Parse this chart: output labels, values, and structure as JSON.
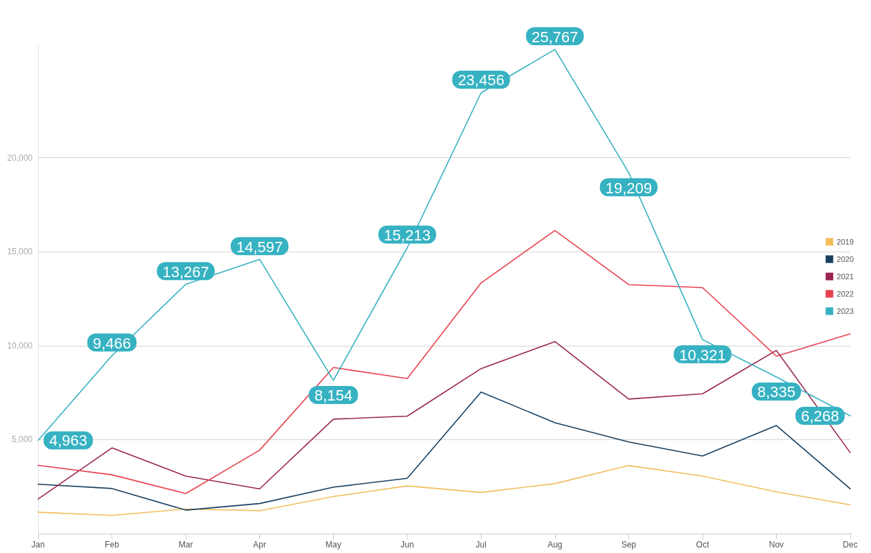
{
  "chart_data": {
    "type": "line",
    "categories": [
      "Jan",
      "Feb",
      "Mar",
      "Apr",
      "May",
      "Jun",
      "Jul",
      "Aug",
      "Sep",
      "Oct",
      "Nov",
      "Dec"
    ],
    "ylim": [
      0,
      26000
    ],
    "yticks": [
      {
        "value": 0,
        "label": null
      },
      {
        "value": 5000,
        "label": "5,000"
      },
      {
        "value": 10000,
        "label": "10,000"
      },
      {
        "value": 15000,
        "label": "15,000"
      },
      {
        "value": 20000,
        "label": "20,000"
      }
    ],
    "grid": "y",
    "legend": "right",
    "marker": "none",
    "line_style": "solid",
    "series": [
      {
        "name": "2019",
        "color": "#f2be5c",
        "values": [
          1140,
          970,
          1310,
          1220,
          1970,
          2540,
          2190,
          2660,
          3620,
          3060,
          2220,
          1530
        ]
      },
      {
        "name": "2020",
        "color": "#173f5f",
        "values": [
          2630,
          2400,
          1250,
          1600,
          2470,
          2940,
          7530,
          5900,
          4880,
          4130,
          5750,
          2380
        ]
      },
      {
        "name": "2021",
        "color": "#9b2550",
        "values": [
          1840,
          4560,
          3060,
          2380,
          6090,
          6250,
          8780,
          10220,
          7160,
          7440,
          9750,
          4310
        ]
      },
      {
        "name": "2022",
        "color": "#e8404f",
        "values": [
          3630,
          3130,
          2130,
          4440,
          8840,
          8250,
          13340,
          16130,
          13250,
          13090,
          9440,
          10630
        ]
      },
      {
        "name": "2023",
        "color": "#36b2c2",
        "values": [
          4963,
          9466,
          13267,
          14597,
          8154,
          15213,
          23456,
          25767,
          19209,
          10321,
          8335,
          6268
        ],
        "value_labels": [
          "4,963",
          "9,466",
          "13,267",
          "14,597",
          "8,154",
          "15,213",
          "23,456",
          "25,767",
          "19,209",
          "10,321",
          "8,335",
          "6,268"
        ]
      }
    ]
  }
}
